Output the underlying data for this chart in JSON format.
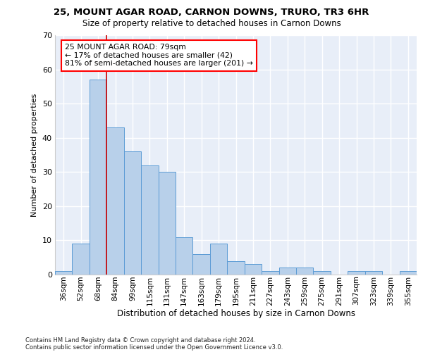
{
  "title1": "25, MOUNT AGAR ROAD, CARNON DOWNS, TRURO, TR3 6HR",
  "title2": "Size of property relative to detached houses in Carnon Downs",
  "xlabel": "Distribution of detached houses by size in Carnon Downs",
  "ylabel": "Number of detached properties",
  "categories": [
    "36sqm",
    "52sqm",
    "68sqm",
    "84sqm",
    "99sqm",
    "115sqm",
    "131sqm",
    "147sqm",
    "163sqm",
    "179sqm",
    "195sqm",
    "211sqm",
    "227sqm",
    "243sqm",
    "259sqm",
    "275sqm",
    "291sqm",
    "307sqm",
    "323sqm",
    "339sqm",
    "355sqm"
  ],
  "values": [
    1,
    9,
    57,
    43,
    36,
    32,
    30,
    11,
    6,
    9,
    4,
    3,
    1,
    2,
    2,
    1,
    0,
    1,
    1,
    0,
    1
  ],
  "bar_color": "#b8d0ea",
  "bar_edge_color": "#5b9bd5",
  "annotation_text": "25 MOUNT AGAR ROAD: 79sqm\n← 17% of detached houses are smaller (42)\n81% of semi-detached houses are larger (201) →",
  "ylim": [
    0,
    70
  ],
  "yticks": [
    0,
    10,
    20,
    30,
    40,
    50,
    60,
    70
  ],
  "footer1": "Contains HM Land Registry data © Crown copyright and database right 2024.",
  "footer2": "Contains public sector information licensed under the Open Government Licence v3.0.",
  "bg_color": "#e8eef8"
}
